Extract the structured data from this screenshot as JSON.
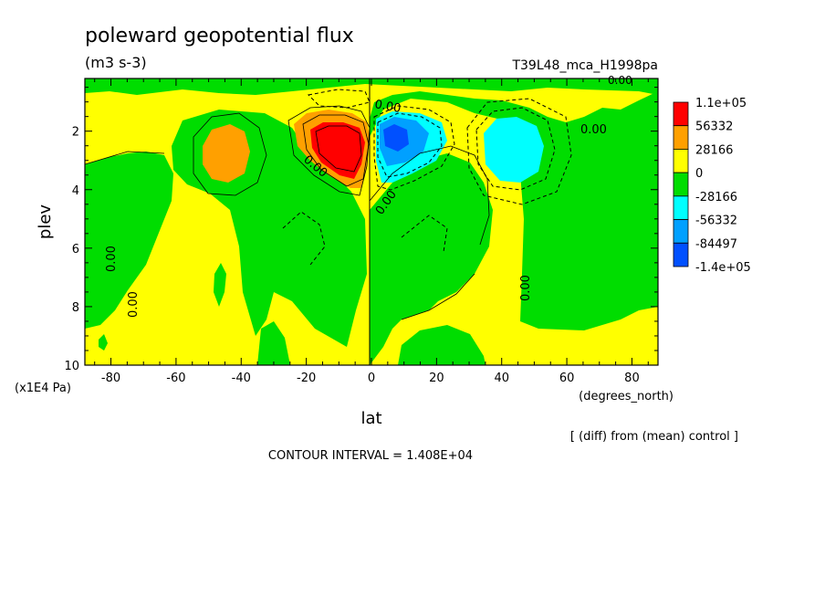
{
  "chart_data": {
    "type": "heatmap",
    "title": "poleward geopotential flux",
    "units": "(m3 s-3)",
    "run_label": "T39L48_mca_H1998pa",
    "xlabel": "lat",
    "x_units": "(degrees_north)",
    "ylabel": "plev",
    "y_units": "(x1E4 Pa)",
    "x_ticks": [
      "-80",
      "-60",
      "-40",
      "-20",
      "0",
      "20",
      "40",
      "60",
      "80"
    ],
    "y_ticks": [
      "2",
      "4",
      "6",
      "8",
      "10"
    ],
    "xlim": [
      -88,
      88
    ],
    "ylim": [
      0.2,
      10
    ],
    "y_inverted": true,
    "colorbar": {
      "labels": [
        "1.1e+05",
        "56332",
        "28166",
        "0",
        "-28166",
        "-56332",
        "-84497",
        "-1.4e+05"
      ],
      "colors": [
        "#ff0000",
        "#ffa000",
        "#ffff00",
        "#00dd00",
        "#00ffff",
        "#00a0ff",
        "#0050ff"
      ]
    },
    "contour_labels": [
      "0.00",
      "0.00",
      "0.00",
      "0.00",
      "0.00",
      "0.00",
      "0.00",
      "0.00"
    ],
    "footer_note": "[ (diff) from (mean) control ]",
    "contour_interval": "CONTOUR INTERVAL = 1.408E+04",
    "grid": false
  }
}
